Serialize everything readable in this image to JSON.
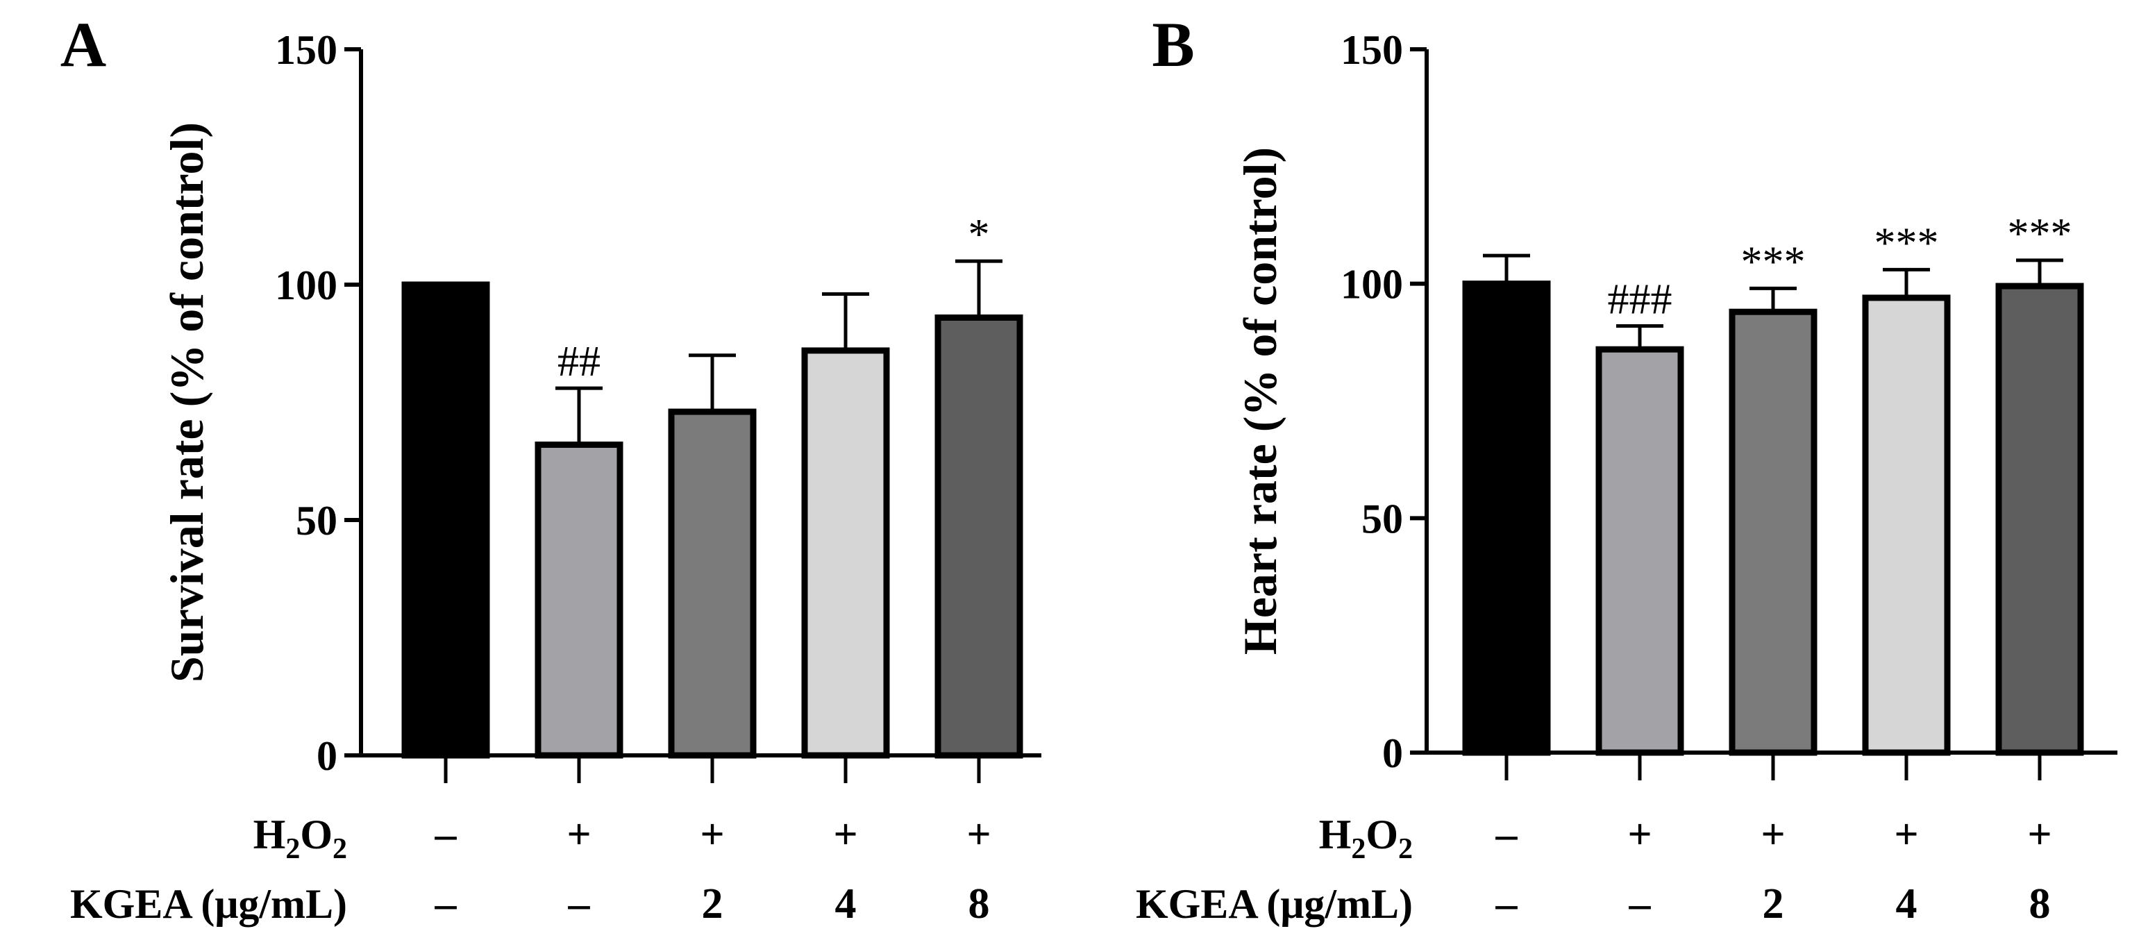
{
  "chart_data": [
    {
      "type": "bar",
      "panel_label": "A",
      "ylabel": "Survival rate (% of control)",
      "ylim": [
        0,
        150
      ],
      "yticks": [
        "0",
        "50",
        "100",
        "150"
      ],
      "ytick_values": [
        0,
        50,
        100,
        150
      ],
      "groups": [
        {
          "h2o2": "–",
          "kgea": "–",
          "value": 100,
          "error": 0,
          "annotation": "",
          "color": "#000000"
        },
        {
          "h2o2": "+",
          "kgea": "–",
          "value": 66,
          "error": 12,
          "annotation": "##",
          "color": "#a3a3a7"
        },
        {
          "h2o2": "+",
          "kgea": "2",
          "value": 73,
          "error": 12,
          "annotation": "",
          "color": "#7b7b7b"
        },
        {
          "h2o2": "+",
          "kgea": "4",
          "value": 86,
          "error": 12,
          "annotation": "",
          "color": "#d6d6d6"
        },
        {
          "h2o2": "+",
          "kgea": "8",
          "value": 93,
          "error": 12,
          "annotation": "*",
          "color": "#5e5e5e"
        }
      ],
      "row_labels": {
        "h2o2": "H",
        "h2o2_sub1": "2",
        "h2o2_mid": "O",
        "h2o2_sub2": "2",
        "kgea": "KGEA (μg/mL)"
      }
    },
    {
      "type": "bar",
      "panel_label": "B",
      "ylabel": "Heart rate (% of control)",
      "ylim": [
        0,
        150
      ],
      "yticks": [
        "0",
        "50",
        "100",
        "150"
      ],
      "ytick_values": [
        0,
        50,
        100,
        150
      ],
      "groups": [
        {
          "h2o2": "–",
          "kgea": "–",
          "value": 100,
          "error": 6,
          "annotation": "",
          "color": "#000000"
        },
        {
          "h2o2": "+",
          "kgea": "–",
          "value": 86,
          "error": 5,
          "annotation": "###",
          "color": "#a3a3a7"
        },
        {
          "h2o2": "+",
          "kgea": "2",
          "value": 94,
          "error": 5,
          "annotation": "***",
          "color": "#7b7b7b"
        },
        {
          "h2o2": "+",
          "kgea": "4",
          "value": 97,
          "error": 6,
          "annotation": "***",
          "color": "#d6d6d6"
        },
        {
          "h2o2": "+",
          "kgea": "8",
          "value": 99.5,
          "error": 5.5,
          "annotation": "***",
          "color": "#5e5e5e"
        }
      ],
      "row_labels": {
        "h2o2": "H",
        "h2o2_sub1": "2",
        "h2o2_mid": "O",
        "h2o2_sub2": "2",
        "kgea": "KGEA (μg/mL)"
      }
    }
  ]
}
